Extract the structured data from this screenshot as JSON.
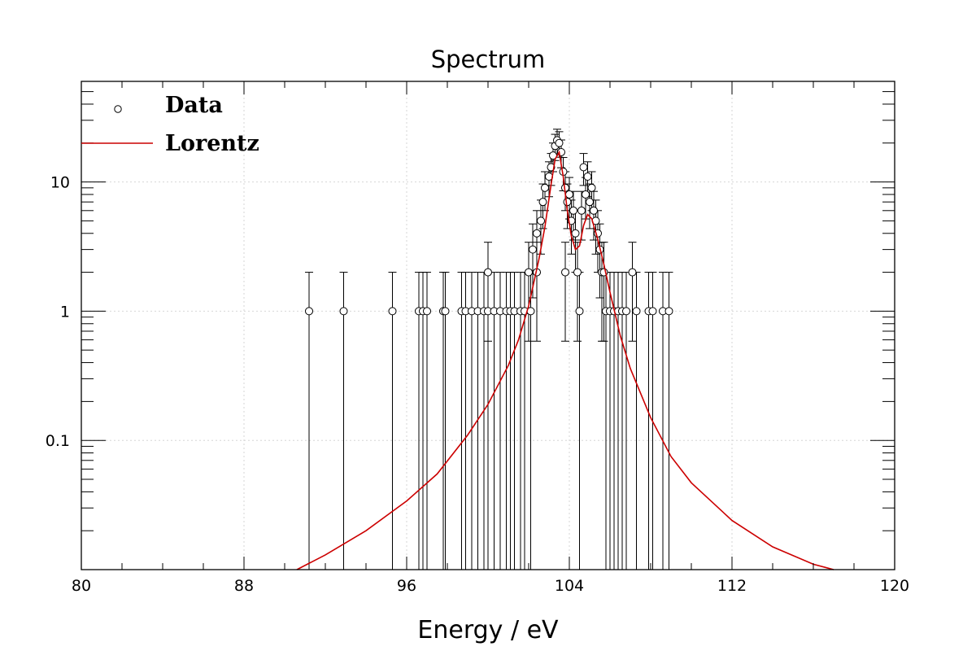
{
  "chart_data": {
    "type": "scatter",
    "title": "Spectrum",
    "xlabel": "Energy / eV",
    "ylabel": "",
    "xlim": [
      80,
      120
    ],
    "ylim": [
      0.01,
      60
    ],
    "yscale": "log",
    "grid": true,
    "legend_position": "top-left",
    "x_ticks": [
      "80",
      "88",
      "96",
      "104",
      "112",
      "120"
    ],
    "y_ticks": [
      "0.1",
      "1",
      "10"
    ],
    "series": [
      {
        "name": "Data",
        "style": "open-circle-with-error-bars",
        "color": "#000000",
        "points": [
          [
            91.2,
            1
          ],
          [
            92.9,
            1
          ],
          [
            95.3,
            1
          ],
          [
            96.6,
            1
          ],
          [
            96.8,
            1
          ],
          [
            97.0,
            1
          ],
          [
            97.8,
            1
          ],
          [
            97.9,
            1
          ],
          [
            98.7,
            1
          ],
          [
            98.9,
            1
          ],
          [
            99.2,
            1
          ],
          [
            99.5,
            1
          ],
          [
            99.8,
            1
          ],
          [
            100.0,
            2
          ],
          [
            100.0,
            1
          ],
          [
            100.3,
            1
          ],
          [
            100.6,
            1
          ],
          [
            100.9,
            1
          ],
          [
            101.1,
            1
          ],
          [
            101.3,
            1
          ],
          [
            101.6,
            1
          ],
          [
            101.8,
            1
          ],
          [
            102.0,
            2
          ],
          [
            102.1,
            1
          ],
          [
            102.2,
            3
          ],
          [
            102.4,
            2
          ],
          [
            102.4,
            4
          ],
          [
            102.6,
            5
          ],
          [
            102.7,
            7
          ],
          [
            102.8,
            9
          ],
          [
            103.0,
            11
          ],
          [
            103.1,
            13
          ],
          [
            103.2,
            16
          ],
          [
            103.3,
            19
          ],
          [
            103.4,
            21
          ],
          [
            103.5,
            20
          ],
          [
            103.6,
            17
          ],
          [
            103.7,
            12
          ],
          [
            103.8,
            9
          ],
          [
            103.8,
            2
          ],
          [
            103.9,
            7
          ],
          [
            104.0,
            8
          ],
          [
            104.1,
            5
          ],
          [
            104.2,
            6
          ],
          [
            104.3,
            4
          ],
          [
            104.4,
            2
          ],
          [
            104.5,
            1
          ],
          [
            104.6,
            6
          ],
          [
            104.7,
            13
          ],
          [
            104.8,
            8
          ],
          [
            104.9,
            11
          ],
          [
            105.0,
            7
          ],
          [
            105.1,
            9
          ],
          [
            105.2,
            6
          ],
          [
            105.3,
            5
          ],
          [
            105.4,
            4
          ],
          [
            105.5,
            3
          ],
          [
            105.6,
            2
          ],
          [
            105.7,
            2
          ],
          [
            105.8,
            1
          ],
          [
            106.0,
            1
          ],
          [
            106.2,
            1
          ],
          [
            106.4,
            1
          ],
          [
            106.6,
            1
          ],
          [
            106.8,
            1
          ],
          [
            107.1,
            2
          ],
          [
            107.3,
            1
          ],
          [
            107.9,
            1
          ],
          [
            108.1,
            1
          ],
          [
            108.6,
            1
          ],
          [
            108.9,
            1
          ]
        ]
      },
      {
        "name": "Lorentz",
        "style": "line",
        "color": "#cc0000",
        "x": [
          90.6,
          92,
          94,
          96,
          97.5,
          99,
          100,
          101,
          101.5,
          102,
          102.5,
          102.8,
          103.1,
          103.3,
          103.5,
          103.7,
          103.9,
          104.1,
          104.3,
          104.5,
          104.7,
          104.9,
          105.1,
          105.4,
          105.7,
          106,
          106.5,
          107,
          108,
          109,
          110,
          112,
          114,
          116,
          117
        ],
        "y": [
          0.01,
          0.013,
          0.02,
          0.034,
          0.055,
          0.11,
          0.19,
          0.38,
          0.6,
          1.1,
          2.5,
          4.5,
          9.5,
          15,
          17,
          11,
          6,
          3.8,
          3,
          3.2,
          4.6,
          5.6,
          5.2,
          3.6,
          2.3,
          1.4,
          0.65,
          0.36,
          0.15,
          0.075,
          0.047,
          0.024,
          0.015,
          0.011,
          0.01
        ]
      }
    ]
  }
}
